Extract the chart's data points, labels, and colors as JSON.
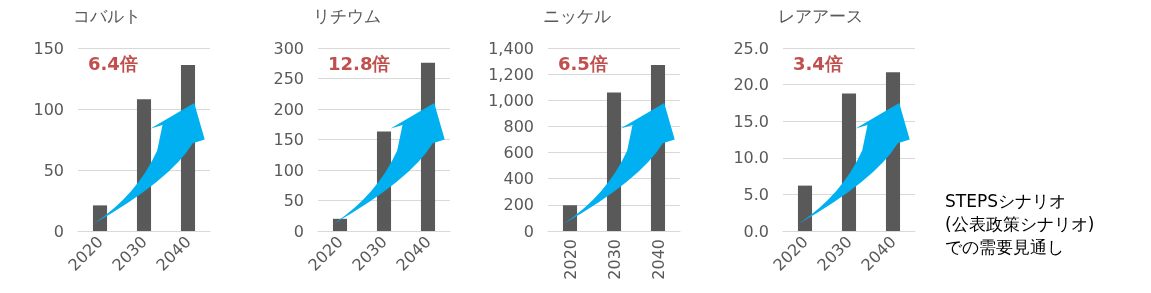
{
  "chart_data": [
    {
      "type": "bar",
      "title": "コバルト",
      "categories": [
        "2020",
        "2030",
        "2040"
      ],
      "values": [
        21,
        108,
        136
      ],
      "color": "#595959",
      "ylim": [
        0,
        150
      ],
      "yticks": [
        0,
        50,
        100,
        150
      ],
      "grid": "y",
      "annotations": [
        "6.4倍"
      ]
    },
    {
      "type": "bar",
      "title": "リチウム",
      "categories": [
        "2020",
        "2030",
        "2040"
      ],
      "values": [
        20,
        163,
        276
      ],
      "color": "#595959",
      "ylim": [
        0,
        300
      ],
      "yticks": [
        0,
        50,
        100,
        150,
        200,
        250,
        300
      ],
      "grid": "y",
      "annotations": [
        "12.8倍"
      ]
    },
    {
      "type": "bar",
      "title": "ニッケル",
      "categories": [
        "2020",
        "2030",
        "2040"
      ],
      "values": [
        197,
        1060,
        1270
      ],
      "color": "#595959",
      "ylim": [
        0,
        1400
      ],
      "yticks": [
        0,
        200,
        400,
        600,
        800,
        {
          "value": 1000,
          "label": "1,000"
        },
        {
          "value": 1200,
          "label": "1,200"
        },
        {
          "value": 1400,
          "label": "1,400"
        }
      ],
      "grid": "y",
      "annotations": [
        "6.5倍"
      ]
    },
    {
      "type": "bar",
      "title": "レアアース",
      "categories": [
        "2020",
        "2030",
        "2040"
      ],
      "values": [
        6.2,
        18.8,
        21.7
      ],
      "color": "#595959",
      "ylim": [
        0,
        25
      ],
      "yticks": [
        {
          "value": 0,
          "label": "0.0"
        },
        {
          "value": 5,
          "label": "5.0"
        },
        {
          "value": 10,
          "label": "10.0"
        },
        {
          "value": 15,
          "label": "15.0"
        },
        {
          "value": 20,
          "label": "20.0"
        },
        {
          "value": 25,
          "label": "25.0"
        }
      ],
      "grid": "y",
      "annotations": [
        "3.4倍"
      ]
    },
    {
      "type": "other",
      "annotations": [
        "STEPSシナリオ",
        "(公表政策シナリオ)",
        "での需要見通し"
      ]
    }
  ]
}
